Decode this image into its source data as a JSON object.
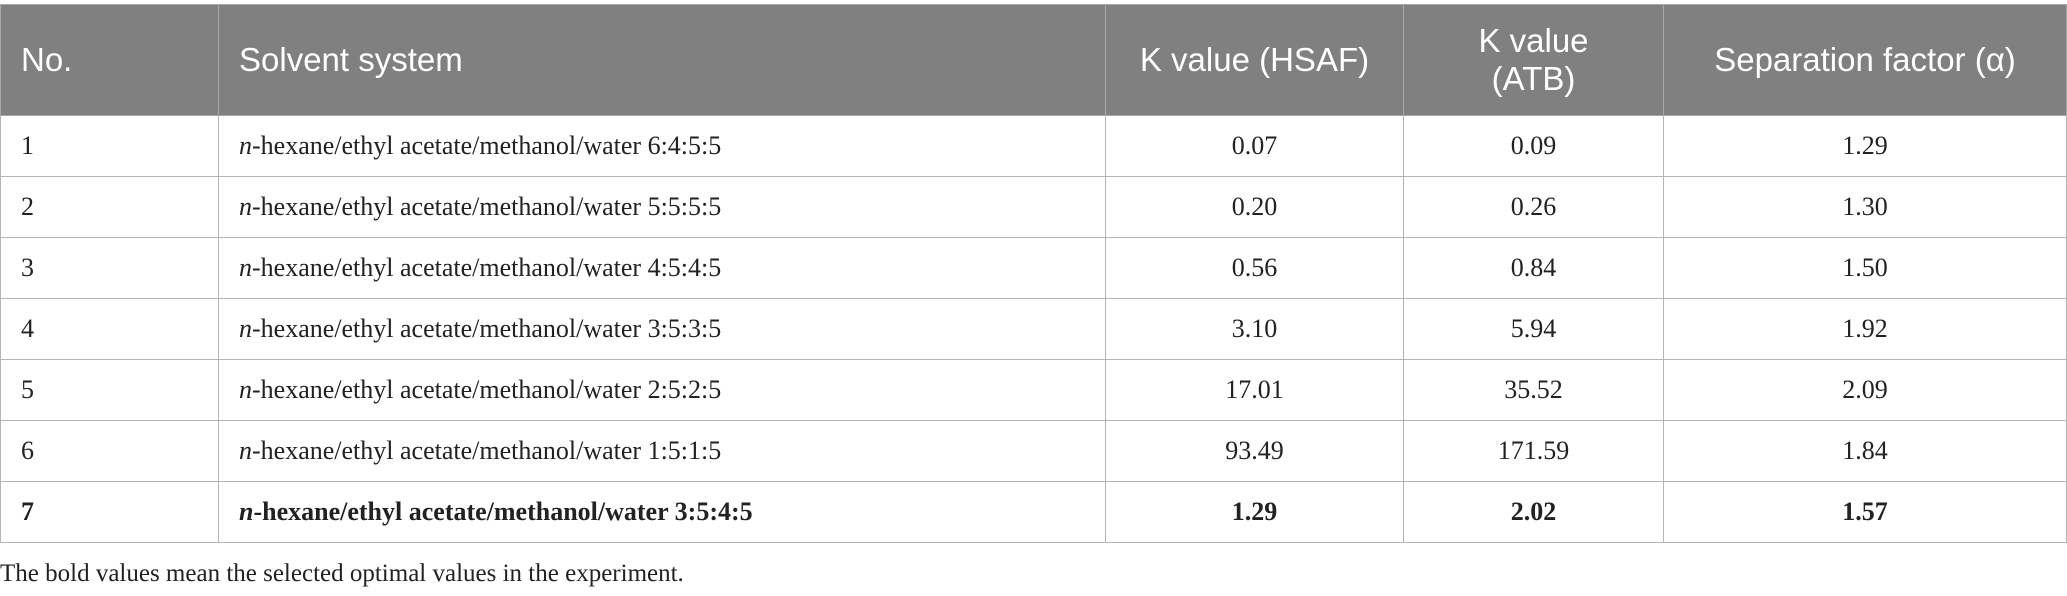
{
  "table": {
    "headers": [
      "No.",
      "Solvent system",
      "K value (HSAF)",
      "K value (ATB)",
      "Separation factor (α)"
    ],
    "rows": [
      {
        "no": "1",
        "prefix": "n",
        "solvent": "-hexane/ethyl acetate/methanol/water 6:4:5:5",
        "k_hsaf": "0.07",
        "k_atb": "0.09",
        "alpha": "1.29",
        "bold": false
      },
      {
        "no": "2",
        "prefix": "n",
        "solvent": "-hexane/ethyl acetate/methanol/water 5:5:5:5",
        "k_hsaf": "0.20",
        "k_atb": "0.26",
        "alpha": "1.30",
        "bold": false
      },
      {
        "no": "3",
        "prefix": "n",
        "solvent": "-hexane/ethyl acetate/methanol/water 4:5:4:5",
        "k_hsaf": "0.56",
        "k_atb": "0.84",
        "alpha": "1.50",
        "bold": false
      },
      {
        "no": "4",
        "prefix": "n",
        "solvent": "-hexane/ethyl acetate/methanol/water 3:5:3:5",
        "k_hsaf": "3.10",
        "k_atb": "5.94",
        "alpha": "1.92",
        "bold": false
      },
      {
        "no": "5",
        "prefix": "n",
        "solvent": "-hexane/ethyl acetate/methanol/water 2:5:2:5",
        "k_hsaf": "17.01",
        "k_atb": "35.52",
        "alpha": "2.09",
        "bold": false
      },
      {
        "no": "6",
        "prefix": "n",
        "solvent": "-hexane/ethyl acetate/methanol/water 1:5:1:5",
        "k_hsaf": "93.49",
        "k_atb": "171.59",
        "alpha": "1.84",
        "bold": false
      },
      {
        "no": "7",
        "prefix": "n",
        "solvent": "-hexane/ethyl acetate/methanol/water 3:5:4:5",
        "k_hsaf": "1.29",
        "k_atb": "2.02",
        "alpha": "1.57",
        "bold": true
      }
    ]
  },
  "footnote": "The bold values mean the selected optimal values in the experiment."
}
